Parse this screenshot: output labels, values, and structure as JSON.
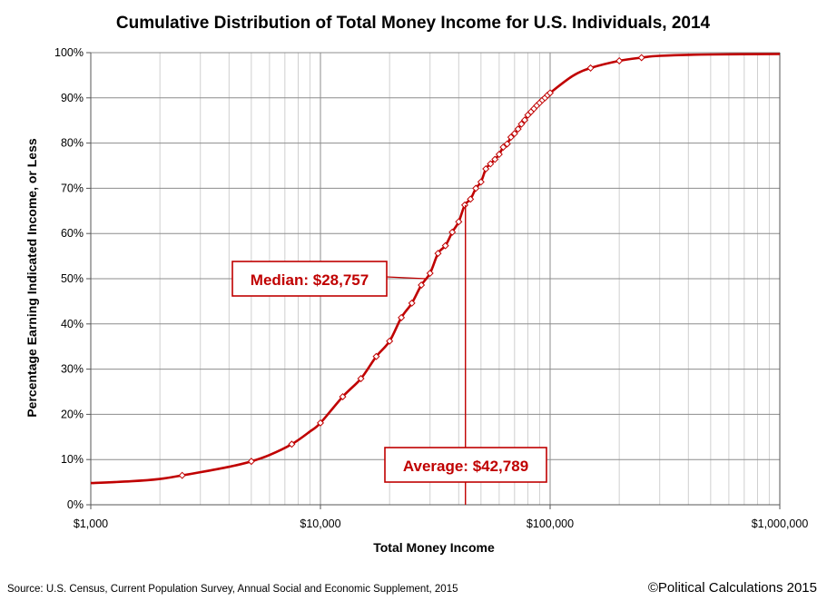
{
  "chart_data": {
    "type": "line",
    "title": "Cumulative Distribution of Total Money Income for U.S. Individuals, 2014",
    "xlabel": "Total Money Income",
    "ylabel": "Percentage Earning Indicated Income, or Less",
    "x_scale": "log",
    "xlim": [
      1000,
      1000000
    ],
    "ylim": [
      0,
      100
    ],
    "x_ticks": [
      {
        "value": 1000,
        "label": "$1,000"
      },
      {
        "value": 10000,
        "label": "$10,000"
      },
      {
        "value": 100000,
        "label": "$100,000"
      },
      {
        "value": 1000000,
        "label": "$1,000,000"
      }
    ],
    "y_ticks": [
      {
        "value": 0,
        "label": "0%"
      },
      {
        "value": 10,
        "label": "10%"
      },
      {
        "value": 20,
        "label": "20%"
      },
      {
        "value": 30,
        "label": "30%"
      },
      {
        "value": 40,
        "label": "40%"
      },
      {
        "value": 50,
        "label": "50%"
      },
      {
        "value": 60,
        "label": "60%"
      },
      {
        "value": 70,
        "label": "70%"
      },
      {
        "value": 80,
        "label": "80%"
      },
      {
        "value": 90,
        "label": "90%"
      },
      {
        "value": 100,
        "label": "100%"
      }
    ],
    "grid": true,
    "curve": {
      "x": [
        1000,
        1500,
        2000,
        2500,
        3000,
        4000,
        5000,
        6000,
        7500,
        9000,
        10000,
        12500,
        15000,
        17500,
        20000,
        22500,
        25000,
        27500,
        30000,
        32500,
        35000,
        37500,
        40000,
        42500,
        45000,
        47500,
        50000,
        52500,
        55000,
        57500,
        60000,
        62500,
        65000,
        67500,
        70000,
        72500,
        75000,
        77500,
        80000,
        82500,
        85000,
        87500,
        90000,
        92500,
        95000,
        97500,
        100000,
        125000,
        150000,
        200000,
        250000,
        300000,
        500000,
        1000000
      ],
      "y": [
        4.8,
        5.2,
        5.7,
        6.5,
        7.2,
        8.4,
        9.6,
        11.0,
        13.4,
        16.2,
        18.1,
        23.9,
        27.9,
        32.8,
        36.2,
        41.4,
        44.6,
        48.6,
        51.2,
        55.6,
        57.3,
        60.3,
        62.6,
        66.3,
        67.6,
        70.0,
        71.4,
        74.3,
        75.4,
        76.4,
        77.5,
        79.1,
        79.8,
        81.3,
        82.1,
        83.1,
        84.2,
        85.1,
        86.2,
        86.9,
        87.6,
        88.3,
        88.9,
        89.5,
        90.0,
        90.6,
        91.1,
        94.8,
        96.6,
        98.2,
        98.9,
        99.3,
        99.6,
        99.7
      ]
    },
    "markers": {
      "x": [
        2500,
        5000,
        7500,
        10000,
        12500,
        15000,
        17500,
        20000,
        22500,
        25000,
        27500,
        30000,
        32500,
        35000,
        37500,
        40000,
        42500,
        45000,
        47500,
        50000,
        52500,
        55000,
        57500,
        60000,
        62500,
        65000,
        67500,
        70000,
        72500,
        75000,
        77500,
        80000,
        82500,
        85000,
        87500,
        90000,
        92500,
        95000,
        97500,
        100000,
        150000,
        200000,
        250000
      ],
      "y": [
        6.5,
        9.6,
        13.4,
        18.1,
        23.9,
        27.9,
        32.8,
        36.2,
        41.4,
        44.6,
        48.6,
        51.2,
        55.6,
        57.3,
        60.3,
        62.6,
        66.3,
        67.6,
        70.0,
        71.4,
        74.3,
        75.4,
        76.4,
        77.5,
        79.1,
        79.8,
        81.3,
        82.1,
        83.1,
        84.2,
        85.1,
        86.2,
        86.9,
        87.6,
        88.3,
        88.9,
        89.5,
        90.0,
        90.6,
        91.1,
        96.6,
        98.2,
        98.9
      ]
    },
    "annotations": {
      "median": {
        "label": "Median:  $28,757",
        "x": 28757,
        "y": 50
      },
      "average": {
        "label": "Average: $42,789",
        "x": 42789
      }
    }
  },
  "source": "Source: U.S. Census, Current Population Survey, Annual Social and Economic Supplement, 2015",
  "credit": "©Political Calculations 2015",
  "colors": {
    "series": "#c00000",
    "grid_major": "#8c8c8c",
    "grid_minor": "#d0d0d0"
  }
}
